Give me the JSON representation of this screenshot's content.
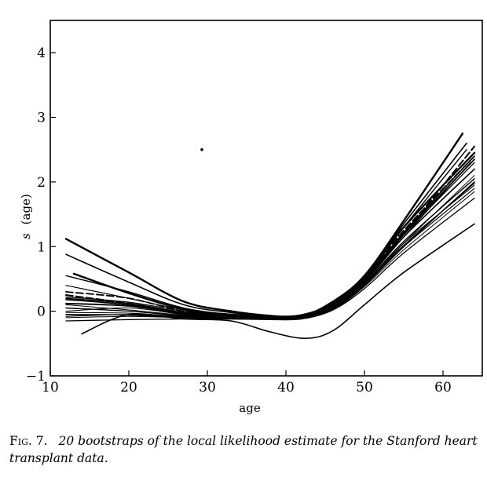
{
  "chart_data": {
    "type": "line",
    "title": "",
    "xlabel": "age",
    "ylabel_italic": "s",
    "ylabel_rest": "(age)",
    "xlim": [
      10,
      65
    ],
    "ylim": [
      -1,
      4.5
    ],
    "xticks": [
      10,
      20,
      30,
      40,
      50,
      60
    ],
    "yticks": [
      -1,
      0,
      1,
      2,
      3,
      4
    ],
    "grid": false,
    "legend": "none",
    "stray_point": {
      "x": 29.3,
      "y": 2.5
    },
    "series": [
      {
        "x": [
          12,
          20,
          27,
          33,
          38,
          42,
          46,
          50,
          55,
          62.5
        ],
        "y": [
          1.12,
          0.6,
          0.15,
          0.0,
          -0.07,
          -0.08,
          0.15,
          0.55,
          1.4,
          2.75
        ]
      },
      {
        "x": [
          12,
          20,
          27,
          33,
          38,
          42,
          46,
          50,
          55,
          63
        ],
        "y": [
          0.88,
          0.45,
          0.1,
          -0.02,
          -0.08,
          -0.1,
          0.12,
          0.52,
          1.35,
          2.6
        ]
      },
      {
        "x": [
          12,
          20,
          27,
          33,
          38,
          42,
          46,
          50,
          55,
          63
        ],
        "y": [
          0.55,
          0.3,
          0.05,
          -0.05,
          -0.08,
          -0.08,
          0.1,
          0.5,
          1.3,
          2.5
        ]
      },
      {
        "x": [
          12,
          20,
          27,
          33,
          38,
          42,
          46,
          50,
          55,
          63.5
        ],
        "y": [
          0.4,
          0.2,
          0.02,
          -0.06,
          -0.1,
          -0.1,
          0.08,
          0.45,
          1.15,
          2.3
        ]
      },
      {
        "x": [
          12,
          20,
          27,
          33,
          38,
          42,
          46,
          50,
          55,
          64
        ],
        "y": [
          0.25,
          0.12,
          -0.02,
          -0.08,
          -0.1,
          -0.08,
          0.08,
          0.48,
          1.2,
          2.55
        ]
      },
      {
        "x": [
          12,
          20,
          27,
          33,
          38,
          42,
          46,
          50,
          55,
          64
        ],
        "y": [
          0.1,
          0.02,
          -0.06,
          -0.1,
          -0.11,
          -0.1,
          0.05,
          0.4,
          1.05,
          2.1
        ]
      },
      {
        "x": [
          12,
          20,
          27,
          33,
          38,
          42,
          46,
          50,
          55,
          64
        ],
        "y": [
          -0.05,
          -0.06,
          -0.1,
          -0.12,
          -0.12,
          -0.1,
          0.05,
          0.4,
          1.0,
          2.0
        ]
      },
      {
        "x": [
          12,
          20,
          27,
          33,
          38,
          42,
          46,
          50,
          55,
          64
        ],
        "y": [
          -0.15,
          -0.13,
          -0.12,
          -0.12,
          -0.13,
          -0.12,
          0.02,
          0.35,
          0.9,
          1.75
        ]
      },
      {
        "x": [
          12,
          20,
          27,
          33,
          38,
          42,
          46,
          50,
          55,
          64
        ],
        "y": [
          0.3,
          0.2,
          0.0,
          -0.05,
          -0.09,
          -0.09,
          0.1,
          0.5,
          1.25,
          2.4
        ]
      },
      {
        "x": [
          12,
          20,
          27,
          33,
          38,
          42,
          46,
          50,
          55,
          64
        ],
        "y": [
          0.0,
          0.05,
          -0.05,
          -0.1,
          -0.11,
          -0.1,
          0.04,
          0.42,
          1.05,
          1.95
        ]
      },
      {
        "x": [
          12,
          20,
          27,
          33,
          38,
          42,
          46,
          50,
          55,
          64
        ],
        "y": [
          0.18,
          0.1,
          -0.03,
          -0.08,
          -0.1,
          -0.09,
          0.06,
          0.45,
          1.15,
          2.2
        ]
      },
      {
        "x": [
          12,
          20,
          27,
          33,
          38,
          42,
          46,
          50,
          55,
          64
        ],
        "y": [
          -0.1,
          -0.08,
          -0.1,
          -0.11,
          -0.12,
          -0.1,
          0.03,
          0.38,
          0.95,
          1.85
        ]
      },
      {
        "x": [
          14,
          20,
          27,
          33,
          38,
          42.5,
          46,
          50,
          55,
          64
        ],
        "y": [
          -0.35,
          -0.05,
          -0.12,
          -0.15,
          -0.32,
          -0.42,
          -0.3,
          0.1,
          0.6,
          1.35
        ]
      },
      {
        "x": [
          13,
          20,
          27,
          33,
          38,
          42,
          46,
          50,
          55,
          64
        ],
        "y": [
          0.58,
          0.28,
          0.03,
          -0.05,
          -0.08,
          -0.06,
          0.12,
          0.52,
          1.3,
          2.45
        ]
      },
      {
        "x": [
          12,
          20,
          27,
          33,
          38,
          42,
          46,
          50,
          55,
          64
        ],
        "y": [
          0.22,
          0.14,
          0.0,
          -0.07,
          -0.1,
          -0.09,
          0.07,
          0.46,
          1.18,
          2.3
        ]
      },
      {
        "x": [
          12,
          20,
          27,
          33,
          38,
          42,
          46,
          50,
          55,
          64
        ],
        "y": [
          0.05,
          0.0,
          -0.07,
          -0.1,
          -0.11,
          -0.1,
          0.05,
          0.43,
          1.08,
          2.05
        ]
      },
      {
        "x": [
          12,
          20,
          27,
          33,
          38,
          42,
          46,
          50,
          55,
          64
        ],
        "y": [
          -0.02,
          -0.03,
          -0.08,
          -0.1,
          -0.12,
          -0.11,
          0.04,
          0.41,
          1.02,
          1.98
        ]
      },
      {
        "x": [
          12,
          20,
          27,
          33,
          38,
          42,
          46,
          50,
          55,
          64
        ],
        "y": [
          0.12,
          0.08,
          -0.04,
          -0.08,
          -0.1,
          -0.09,
          0.06,
          0.47,
          1.2,
          2.35
        ]
      },
      {
        "x": [
          12,
          20,
          27,
          33,
          38,
          42,
          46,
          50,
          55,
          64
        ],
        "y": [
          -0.08,
          -0.05,
          -0.09,
          -0.11,
          -0.12,
          -0.11,
          0.04,
          0.4,
          1.0,
          1.9
        ]
      },
      {
        "x": [
          12,
          20,
          27,
          33,
          38,
          42,
          46,
          50,
          55,
          64
        ],
        "y": [
          0.2,
          0.12,
          -0.02,
          -0.07,
          -0.1,
          -0.09,
          0.07,
          0.49,
          1.22,
          2.4
        ]
      }
    ]
  },
  "caption": {
    "label": "Fig. 7.",
    "text": "20 bootstraps of the local likelihood estimate for the Stanford heart transplant data."
  }
}
